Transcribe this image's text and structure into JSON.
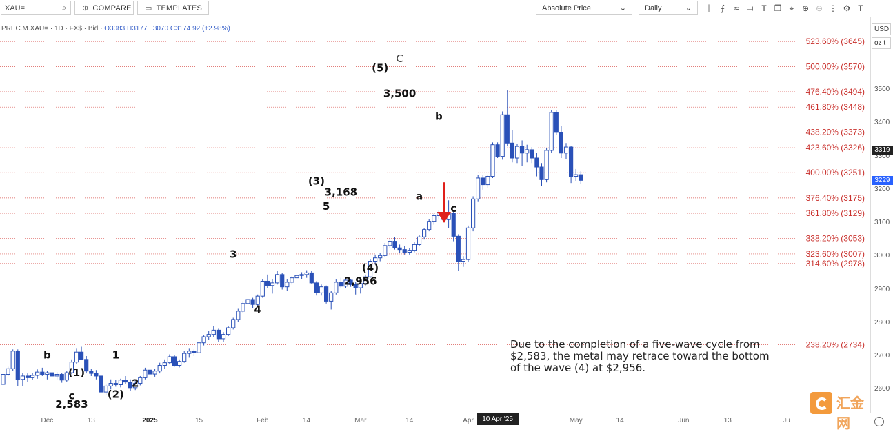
{
  "toolbar": {
    "symbol_value": "XAU=",
    "compare_label": "COMPARE",
    "templates_label": "TEMPLATES",
    "price_mode": "Absolute Price",
    "interval": "Daily"
  },
  "legend": {
    "prefix": "PREC.M.XAU= · 1D · FX$ · Bid · ",
    "ohlc": "O3083 H3177 L3070 C3174 92 (+2.98%)"
  },
  "right_axis": {
    "currency": "USD",
    "unit": "oz t",
    "ticks": [
      "3500",
      "3400",
      "3300",
      "3200",
      "3100",
      "3000",
      "2900",
      "2800",
      "2700",
      "2600"
    ],
    "tick_values": [
      3500,
      3400,
      3300,
      3200,
      3100,
      3000,
      2900,
      2800,
      2700,
      2600
    ],
    "last_price_tag": "3319",
    "current_price_tag": "3229",
    "colors": {
      "last_tag": "#222222",
      "current_tag": "#2962ff"
    }
  },
  "chart_data": {
    "type": "candlestick",
    "ylim": [
      2530,
      3720
    ],
    "fib_levels": [
      {
        "label": "523.60% (3645)",
        "value": 3645
      },
      {
        "label": "500.00% (3570)",
        "value": 3570
      },
      {
        "label": "476.40% (3494)",
        "value": 3494
      },
      {
        "label": "461.80% (3448)",
        "value": 3448
      },
      {
        "label": "438.20% (3373)",
        "value": 3373
      },
      {
        "label": "423.60% (3326)",
        "value": 3326
      },
      {
        "label": "400.00% (3251)",
        "value": 3251
      },
      {
        "label": "376.40% (3175)",
        "value": 3175
      },
      {
        "label": "361.80% (3129)",
        "value": 3129
      },
      {
        "label": "338.20% (3053)",
        "value": 3053
      },
      {
        "label": "323.60% (3007)",
        "value": 3007
      },
      {
        "label": "314.60% (2978)",
        "value": 2978
      },
      {
        "label": "238.20% (2734)",
        "value": 2734
      }
    ],
    "x_ticks": [
      {
        "label": "Dec",
        "i": 9
      },
      {
        "label": "13",
        "i": 18
      },
      {
        "label": "2025",
        "i": 30
      },
      {
        "label": "15",
        "i": 40
      },
      {
        "label": "Feb",
        "i": 53
      },
      {
        "label": "14",
        "i": 62
      },
      {
        "label": "Mar",
        "i": 73
      },
      {
        "label": "14",
        "i": 83
      },
      {
        "label": "Apr",
        "i": 95
      },
      {
        "label": "May",
        "i": 117
      },
      {
        "label": "14",
        "i": 126
      },
      {
        "label": "Jun",
        "i": 139
      },
      {
        "label": "13",
        "i": 148
      },
      {
        "label": "Ju",
        "i": 160
      }
    ],
    "crosshair_date": "10 Apr '25",
    "crosshair_index": 101,
    "candles": [
      [
        2615,
        2655,
        2605,
        2645
      ],
      [
        2645,
        2668,
        2640,
        2662
      ],
      [
        2662,
        2720,
        2655,
        2715
      ],
      [
        2715,
        2720,
        2610,
        2630
      ],
      [
        2630,
        2650,
        2610,
        2640
      ],
      [
        2640,
        2648,
        2622,
        2635
      ],
      [
        2635,
        2650,
        2628,
        2642
      ],
      [
        2642,
        2660,
        2632,
        2652
      ],
      [
        2652,
        2665,
        2640,
        2645
      ],
      [
        2645,
        2655,
        2630,
        2650
      ],
      [
        2650,
        2658,
        2635,
        2640
      ],
      [
        2640,
        2652,
        2630,
        2645
      ],
      [
        2645,
        2650,
        2620,
        2628
      ],
      [
        2628,
        2655,
        2622,
        2650
      ],
      [
        2650,
        2690,
        2645,
        2682
      ],
      [
        2682,
        2722,
        2675,
        2712
      ],
      [
        2712,
        2728,
        2688,
        2690
      ],
      [
        2690,
        2700,
        2648,
        2655
      ],
      [
        2655,
        2662,
        2640,
        2648
      ],
      [
        2648,
        2658,
        2630,
        2640
      ],
      [
        2640,
        2645,
        2582,
        2592
      ],
      [
        2592,
        2615,
        2583,
        2610
      ],
      [
        2610,
        2630,
        2600,
        2618
      ],
      [
        2618,
        2628,
        2608,
        2614
      ],
      [
        2614,
        2632,
        2606,
        2628
      ],
      [
        2628,
        2640,
        2615,
        2622
      ],
      [
        2622,
        2630,
        2596,
        2605
      ],
      [
        2605,
        2625,
        2598,
        2618
      ],
      [
        2618,
        2640,
        2612,
        2635
      ],
      [
        2635,
        2665,
        2630,
        2658
      ],
      [
        2658,
        2668,
        2640,
        2646
      ],
      [
        2646,
        2662,
        2638,
        2655
      ],
      [
        2655,
        2680,
        2648,
        2672
      ],
      [
        2672,
        2690,
        2662,
        2680
      ],
      [
        2680,
        2705,
        2675,
        2698
      ],
      [
        2698,
        2702,
        2668,
        2672
      ],
      [
        2672,
        2690,
        2666,
        2684
      ],
      [
        2684,
        2715,
        2680,
        2708
      ],
      [
        2708,
        2722,
        2695,
        2715
      ],
      [
        2715,
        2720,
        2700,
        2710
      ],
      [
        2710,
        2745,
        2705,
        2740
      ],
      [
        2740,
        2762,
        2732,
        2758
      ],
      [
        2758,
        2775,
        2748,
        2765
      ],
      [
        2765,
        2790,
        2758,
        2778
      ],
      [
        2778,
        2782,
        2742,
        2752
      ],
      [
        2752,
        2772,
        2742,
        2765
      ],
      [
        2765,
        2790,
        2760,
        2785
      ],
      [
        2785,
        2815,
        2780,
        2810
      ],
      [
        2810,
        2842,
        2802,
        2835
      ],
      [
        2835,
        2865,
        2830,
        2858
      ],
      [
        2858,
        2880,
        2848,
        2870
      ],
      [
        2870,
        2875,
        2845,
        2855
      ],
      [
        2855,
        2885,
        2850,
        2880
      ],
      [
        2880,
        2932,
        2875,
        2925
      ],
      [
        2925,
        2945,
        2905,
        2912
      ],
      [
        2912,
        2930,
        2888,
        2920
      ],
      [
        2920,
        2955,
        2915,
        2945
      ],
      [
        2945,
        2950,
        2900,
        2908
      ],
      [
        2908,
        2930,
        2895,
        2922
      ],
      [
        2922,
        2940,
        2915,
        2935
      ],
      [
        2935,
        2950,
        2925,
        2942
      ],
      [
        2942,
        2952,
        2932,
        2945
      ],
      [
        2945,
        2958,
        2935,
        2950
      ],
      [
        2950,
        2955,
        2918,
        2920
      ],
      [
        2920,
        2925,
        2882,
        2890
      ],
      [
        2890,
        2915,
        2882,
        2908
      ],
      [
        2908,
        2912,
        2858,
        2865
      ],
      [
        2865,
        2895,
        2840,
        2890
      ],
      [
        2890,
        2930,
        2885,
        2922
      ],
      [
        2922,
        2935,
        2905,
        2910
      ],
      [
        2910,
        2935,
        2905,
        2928
      ],
      [
        2928,
        2932,
        2908,
        2915
      ],
      [
        2915,
        2922,
        2885,
        2905
      ],
      [
        2905,
        2922,
        2888,
        2918
      ],
      [
        2918,
        2945,
        2912,
        2938
      ],
      [
        2938,
        2990,
        2935,
        2985
      ],
      [
        2985,
        3005,
        2975,
        2995
      ],
      [
        2995,
        3010,
        2985,
        3002
      ],
      [
        3002,
        3040,
        2998,
        3032
      ],
      [
        3032,
        3055,
        3025,
        3045
      ],
      [
        3045,
        3057,
        3020,
        3025
      ],
      [
        3025,
        3035,
        3010,
        3020
      ],
      [
        3020,
        3030,
        3005,
        3012
      ],
      [
        3012,
        3025,
        3005,
        3018
      ],
      [
        3018,
        3042,
        3012,
        3035
      ],
      [
        3035,
        3065,
        3030,
        3058
      ],
      [
        3058,
        3085,
        3050,
        3080
      ],
      [
        3080,
        3112,
        3075,
        3105
      ],
      [
        3105,
        3128,
        3095,
        3122
      ],
      [
        3122,
        3138,
        3110,
        3132
      ],
      [
        3132,
        3138,
        3105,
        3110
      ],
      [
        3110,
        3168,
        3085,
        3130
      ],
      [
        3130,
        3135,
        3045,
        3060
      ],
      [
        3060,
        3066,
        2956,
        2985
      ],
      [
        2985,
        3000,
        2968,
        2990
      ],
      [
        2990,
        3092,
        2982,
        3085
      ],
      [
        3085,
        3180,
        3075,
        3172
      ],
      [
        3172,
        3245,
        3165,
        3235
      ],
      [
        3235,
        3245,
        3200,
        3215
      ],
      [
        3215,
        3245,
        3205,
        3240
      ],
      [
        3240,
        3342,
        3235,
        3335
      ],
      [
        3335,
        3342,
        3295,
        3300
      ],
      [
        3300,
        3435,
        3290,
        3425
      ],
      [
        3425,
        3500,
        3330,
        3340
      ],
      [
        3340,
        3378,
        3282,
        3295
      ],
      [
        3295,
        3338,
        3280,
        3330
      ],
      [
        3330,
        3348,
        3272,
        3310
      ],
      [
        3310,
        3335,
        3282,
        3320
      ],
      [
        3320,
        3328,
        3280,
        3295
      ],
      [
        3295,
        3310,
        3240,
        3268
      ],
      [
        3268,
        3280,
        3212,
        3230
      ],
      [
        3230,
        3325,
        3222,
        3318
      ],
      [
        3318,
        3438,
        3310,
        3432
      ],
      [
        3432,
        3440,
        3365,
        3372
      ],
      [
        3372,
        3392,
        3295,
        3310
      ],
      [
        3310,
        3340,
        3292,
        3328
      ],
      [
        3328,
        3332,
        3220,
        3240
      ],
      [
        3240,
        3262,
        3225,
        3245
      ],
      [
        3245,
        3255,
        3218,
        3228
      ]
    ],
    "annotations": [
      {
        "text": "b",
        "i": 9,
        "y": 2693,
        "bold": true
      },
      {
        "text": "(1)",
        "i": 15,
        "y": 2640,
        "bold": true
      },
      {
        "text": "c",
        "i": 14,
        "y": 2570,
        "bold": true
      },
      {
        "text": "2,583",
        "i": 14,
        "y": 2545,
        "bold": true
      },
      {
        "text": "1",
        "i": 23,
        "y": 2693,
        "bold": true
      },
      {
        "text": "(2)",
        "i": 23,
        "y": 2575,
        "bold": true
      },
      {
        "text": "2",
        "i": 27,
        "y": 2608,
        "bold": true
      },
      {
        "text": "3",
        "i": 47,
        "y": 2995,
        "bold": true
      },
      {
        "text": "4",
        "i": 52,
        "y": 2830,
        "bold": true
      },
      {
        "text": "(3)",
        "i": 64,
        "y": 3215,
        "bold": true
      },
      {
        "text": "5",
        "i": 66,
        "y": 3140,
        "bold": true
      },
      {
        "text": "3,168",
        "i": 69,
        "y": 3182,
        "bold": true
      },
      {
        "text": "(4)",
        "i": 75,
        "y": 2955,
        "bold": true
      },
      {
        "text": "2,956",
        "i": 73,
        "y": 2915,
        "bold": true
      },
      {
        "text": "(5)",
        "i": 77,
        "y": 3555,
        "bold": true
      },
      {
        "text": "C",
        "i": 81,
        "y": 3583,
        "bold": false
      },
      {
        "text": "3,500",
        "i": 81,
        "y": 3478,
        "bold": true
      },
      {
        "text": "b",
        "i": 89,
        "y": 3410,
        "bold": true
      },
      {
        "text": "a",
        "i": 85,
        "y": 3170,
        "bold": true
      },
      {
        "text": "c",
        "i": 92,
        "y": 3133,
        "bold": true
      }
    ],
    "arrow": {
      "i": 90,
      "from": 3222,
      "to": 3100,
      "color": "#e0201b"
    },
    "colors": {
      "up_body": "#ffffff",
      "up_border": "#2a51b8",
      "down_body": "#2a51b8",
      "fib_line": "#d9534f",
      "fib_text": "#c9302c"
    }
  },
  "caption": "Due to the completion of a five-wave cycle from $2,583, the metal may retrace toward the bottom of the wave (4) at $2,956.",
  "watermark": {
    "text": "汇金网"
  }
}
